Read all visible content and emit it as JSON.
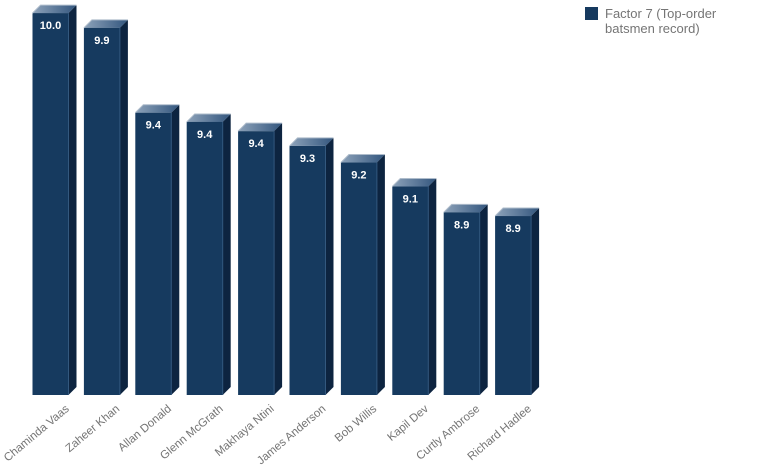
{
  "legend": {
    "label": "Factor 7 (Top-order batsmen record)"
  },
  "colors": {
    "background": "#ffffff",
    "bar_front": "#163a5f",
    "bar_top_light": "#8ea3ba",
    "bar_top_dark": "#33567e",
    "bar_top_edge_highlight": "#aebccb",
    "bar_side": "#0d2440",
    "bar_edge_line": "#33587e",
    "value_label": "#ffffff",
    "axis_label": "#757575",
    "legend_text": "#757575"
  },
  "chart_data": {
    "type": "bar",
    "style": "3d-column",
    "title": "",
    "xlabel": "",
    "ylabel": "",
    "grid": false,
    "legend_position": "top-right",
    "baseline_value_est": 7.92,
    "ylim": [
      7.92,
      10.05
    ],
    "categories": [
      "Chaminda Vaas",
      "Zaheer Khan",
      "Allan Donald",
      "Glenn McGrath",
      "Makhaya Ntini",
      "James Anderson",
      "Bob Willis",
      "Kapil Dev",
      "Curtly Ambrose",
      "Richard Hadlee"
    ],
    "series": [
      {
        "name": "Factor 7 (Top-order batsmen record)",
        "values": [
          10.0,
          9.9,
          9.4,
          9.4,
          9.4,
          9.3,
          9.2,
          9.1,
          8.9,
          8.9
        ],
        "value_labels": [
          "10.0",
          "9.9",
          "9.4",
          "9.4",
          "9.4",
          "9.3",
          "9.2",
          "9.1",
          "8.9",
          "8.9"
        ],
        "values_precise_est": [
          9.99,
          9.91,
          9.45,
          9.4,
          9.35,
          9.27,
          9.18,
          9.05,
          8.91,
          8.89
        ]
      }
    ]
  }
}
